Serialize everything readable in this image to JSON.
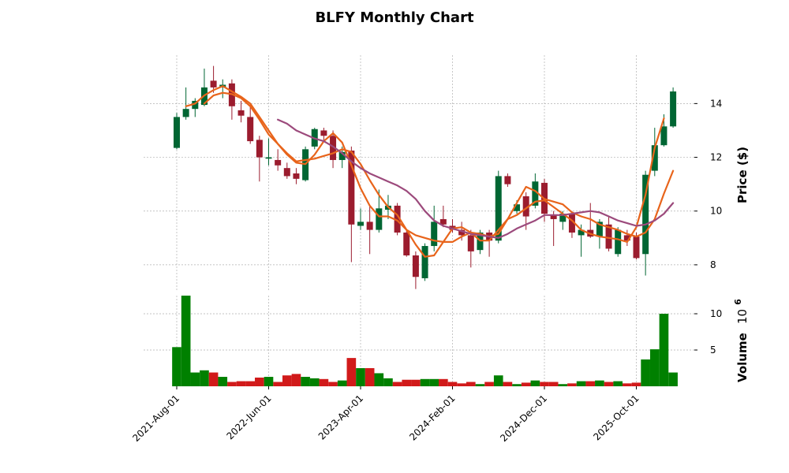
{
  "chart_data": {
    "type": "candlestick",
    "title": "BLFY Monthly Chart",
    "price_panel": {
      "ylabel": "Price ($)",
      "ylim": [
        7.0,
        15.8
      ],
      "yticks": [
        8,
        10,
        12,
        14
      ],
      "grid": true
    },
    "volume_panel": {
      "ylabel": "Volume",
      "ylabel_exponent": "10^6",
      "ylim": [
        0,
        12.5
      ],
      "yticks": [
        5,
        10
      ],
      "grid": true
    },
    "xtick_labels": [
      "2021-Aug-01",
      "2022-Jun-01",
      "2023-Apr-01",
      "2024-Feb-01",
      "2024-Dec-01",
      "2025-Oct-01"
    ],
    "xtick_indices": [
      0,
      10,
      20,
      30,
      40,
      50
    ],
    "colors": {
      "up": "#006633",
      "down": "#9b1c2e",
      "volume_up": "#008000",
      "volume_down": "#d11a1a",
      "ma_fast": "#e8641b",
      "ma_mid": "#e8641b",
      "ma_slow": "#9c4a7c",
      "grid": "#b0b0b0"
    },
    "candles": [
      {
        "date": "2021-Aug",
        "o": 12.35,
        "h": 13.65,
        "l": 12.3,
        "c": 13.5,
        "v": 5.4
      },
      {
        "date": "2021-Sep",
        "o": 13.5,
        "h": 14.6,
        "l": 13.4,
        "c": 13.8,
        "v": 12.5
      },
      {
        "date": "2021-Oct",
        "o": 13.8,
        "h": 14.2,
        "l": 13.5,
        "c": 14.1,
        "v": 1.9
      },
      {
        "date": "2021-Nov",
        "o": 13.95,
        "h": 15.3,
        "l": 13.9,
        "c": 14.6,
        "v": 2.2
      },
      {
        "date": "2021-Dec",
        "o": 14.85,
        "h": 15.4,
        "l": 14.4,
        "c": 14.6,
        "v": 1.9
      },
      {
        "date": "2022-Jan",
        "o": 14.6,
        "h": 14.9,
        "l": 14.2,
        "c": 14.7,
        "v": 1.3
      },
      {
        "date": "2022-Feb",
        "o": 14.75,
        "h": 14.9,
        "l": 13.4,
        "c": 13.9,
        "v": 0.6
      },
      {
        "date": "2022-Mar",
        "o": 13.75,
        "h": 14.1,
        "l": 13.3,
        "c": 13.55,
        "v": 0.7
      },
      {
        "date": "2022-Apr",
        "o": 13.5,
        "h": 14.0,
        "l": 12.5,
        "c": 12.6,
        "v": 0.7
      },
      {
        "date": "2022-May",
        "o": 12.65,
        "h": 12.8,
        "l": 11.1,
        "c": 12.0,
        "v": 1.2
      },
      {
        "date": "2022-Jun",
        "o": 11.95,
        "h": 12.7,
        "l": 11.7,
        "c": 12.0,
        "v": 1.3
      },
      {
        "date": "2022-Jul",
        "o": 11.9,
        "h": 12.3,
        "l": 11.5,
        "c": 11.7,
        "v": 0.6
      },
      {
        "date": "2022-Aug",
        "o": 11.6,
        "h": 11.8,
        "l": 11.2,
        "c": 11.3,
        "v": 1.5
      },
      {
        "date": "2022-Sep",
        "o": 11.4,
        "h": 11.6,
        "l": 11.0,
        "c": 11.2,
        "v": 1.7
      },
      {
        "date": "2022-Oct",
        "o": 11.15,
        "h": 12.4,
        "l": 11.1,
        "c": 12.3,
        "v": 1.3
      },
      {
        "date": "2022-Nov",
        "o": 12.4,
        "h": 13.1,
        "l": 12.3,
        "c": 13.05,
        "v": 1.1
      },
      {
        "date": "2022-Dec",
        "o": 13.0,
        "h": 13.1,
        "l": 12.6,
        "c": 12.8,
        "v": 1.0
      },
      {
        "date": "2023-Jan",
        "o": 12.8,
        "h": 13.0,
        "l": 11.6,
        "c": 11.9,
        "v": 0.6
      },
      {
        "date": "2023-Feb",
        "o": 11.9,
        "h": 12.4,
        "l": 11.6,
        "c": 12.2,
        "v": 0.8
      },
      {
        "date": "2023-Mar",
        "o": 12.25,
        "h": 12.4,
        "l": 8.1,
        "c": 9.5,
        "v": 3.9
      },
      {
        "date": "2023-Apr",
        "o": 9.45,
        "h": 10.1,
        "l": 9.3,
        "c": 9.6,
        "v": 2.5
      },
      {
        "date": "2023-May",
        "o": 9.6,
        "h": 10.2,
        "l": 8.4,
        "c": 9.3,
        "v": 2.5
      },
      {
        "date": "2023-Jun",
        "o": 9.3,
        "h": 10.8,
        "l": 9.2,
        "c": 10.1,
        "v": 1.8
      },
      {
        "date": "2023-Jul",
        "o": 10.05,
        "h": 10.6,
        "l": 9.7,
        "c": 10.2,
        "v": 1.1
      },
      {
        "date": "2023-Aug",
        "o": 10.2,
        "h": 10.3,
        "l": 9.1,
        "c": 9.2,
        "v": 0.6
      },
      {
        "date": "2023-Sep",
        "o": 9.2,
        "h": 9.3,
        "l": 8.3,
        "c": 8.35,
        "v": 0.9
      },
      {
        "date": "2023-Oct",
        "o": 8.35,
        "h": 8.5,
        "l": 7.1,
        "c": 7.55,
        "v": 0.9
      },
      {
        "date": "2023-Nov",
        "o": 7.5,
        "h": 8.8,
        "l": 7.4,
        "c": 8.7,
        "v": 1.0
      },
      {
        "date": "2023-Dec",
        "o": 8.7,
        "h": 10.2,
        "l": 8.5,
        "c": 9.6,
        "v": 1.0
      },
      {
        "date": "2024-Jan",
        "o": 9.7,
        "h": 10.2,
        "l": 9.4,
        "c": 9.5,
        "v": 1.0
      },
      {
        "date": "2024-Feb",
        "o": 9.45,
        "h": 9.7,
        "l": 9.2,
        "c": 9.3,
        "v": 0.6
      },
      {
        "date": "2024-Mar",
        "o": 9.3,
        "h": 9.6,
        "l": 8.9,
        "c": 9.1,
        "v": 0.4
      },
      {
        "date": "2024-Apr",
        "o": 9.1,
        "h": 9.3,
        "l": 7.9,
        "c": 8.5,
        "v": 0.6
      },
      {
        "date": "2024-May",
        "o": 8.55,
        "h": 9.3,
        "l": 8.4,
        "c": 9.2,
        "v": 0.3
      },
      {
        "date": "2024-Jun",
        "o": 9.2,
        "h": 9.3,
        "l": 8.3,
        "c": 8.9,
        "v": 0.6
      },
      {
        "date": "2024-Jul",
        "o": 8.9,
        "h": 11.5,
        "l": 8.8,
        "c": 11.3,
        "v": 1.5
      },
      {
        "date": "2024-Aug",
        "o": 11.3,
        "h": 11.4,
        "l": 10.9,
        "c": 11.0,
        "v": 0.6
      },
      {
        "date": "2024-Sep",
        "o": 10.0,
        "h": 10.4,
        "l": 9.9,
        "c": 10.25,
        "v": 0.3
      },
      {
        "date": "2024-Oct",
        "o": 10.55,
        "h": 10.7,
        "l": 9.3,
        "c": 9.8,
        "v": 0.5
      },
      {
        "date": "2024-Nov",
        "o": 10.2,
        "h": 11.4,
        "l": 10.1,
        "c": 11.1,
        "v": 0.8
      },
      {
        "date": "2024-Dec",
        "o": 11.05,
        "h": 11.2,
        "l": 9.6,
        "c": 9.9,
        "v": 0.6
      },
      {
        "date": "2025-Jan",
        "o": 9.85,
        "h": 10.0,
        "l": 8.7,
        "c": 9.7,
        "v": 0.6
      },
      {
        "date": "2025-Feb",
        "o": 9.6,
        "h": 10.0,
        "l": 9.3,
        "c": 9.9,
        "v": 0.3
      },
      {
        "date": "2025-Mar",
        "o": 9.9,
        "h": 10.0,
        "l": 9.0,
        "c": 9.2,
        "v": 0.4
      },
      {
        "date": "2025-Apr",
        "o": 9.1,
        "h": 9.5,
        "l": 8.3,
        "c": 9.3,
        "v": 0.7
      },
      {
        "date": "2025-May",
        "o": 9.3,
        "h": 10.3,
        "l": 9.0,
        "c": 9.05,
        "v": 0.7
      },
      {
        "date": "2025-Jun",
        "o": 9.05,
        "h": 9.7,
        "l": 8.6,
        "c": 9.6,
        "v": 0.8
      },
      {
        "date": "2025-Jul",
        "o": 9.5,
        "h": 9.8,
        "l": 8.5,
        "c": 8.6,
        "v": 0.6
      },
      {
        "date": "2025-Aug",
        "o": 8.4,
        "h": 9.4,
        "l": 8.3,
        "c": 9.3,
        "v": 0.7
      },
      {
        "date": "2025-Sep",
        "o": 9.1,
        "h": 9.3,
        "l": 8.7,
        "c": 8.9,
        "v": 0.4
      },
      {
        "date": "2025-Oct",
        "o": 9.05,
        "h": 9.2,
        "l": 8.2,
        "c": 8.25,
        "v": 0.5
      },
      {
        "date": "2025-Nov",
        "o": 8.4,
        "h": 11.5,
        "l": 7.6,
        "c": 11.35,
        "v": 3.7
      },
      {
        "date": "2025-Dec",
        "o": 11.5,
        "h": 13.1,
        "l": 11.3,
        "c": 12.45,
        "v": 5.1
      },
      {
        "date": "2026-Jan",
        "o": 12.45,
        "h": 13.6,
        "l": 12.4,
        "c": 13.15,
        "v": 10.0
      },
      {
        "date": "2026-Feb",
        "o": 13.15,
        "h": 14.6,
        "l": 13.1,
        "c": 14.45,
        "v": 1.9
      }
    ],
    "moving_averages": [
      {
        "role": "fast",
        "start": 1,
        "values": [
          13.9,
          14.0,
          14.3,
          14.5,
          14.65,
          14.45,
          14.25,
          14.0,
          13.5,
          13.0,
          12.5,
          12.1,
          11.8,
          11.75,
          12.1,
          12.6,
          12.9,
          12.55,
          11.7,
          10.85,
          10.2,
          9.8,
          9.8,
          9.65,
          9.3,
          8.75,
          8.3,
          8.35,
          8.85,
          9.35,
          9.4,
          9.2,
          8.9,
          8.9,
          9.3,
          9.7,
          9.85,
          10.1,
          10.35,
          10.4,
          10.15,
          9.9,
          9.65,
          9.3,
          9.15,
          9.05,
          9.0,
          8.95,
          8.85,
          9.4,
          10.6,
          12.35,
          13.45
        ]
      },
      {
        "role": "mid",
        "start": 3,
        "values": [
          14.0,
          14.3,
          14.4,
          14.35,
          14.2,
          13.9,
          13.4,
          12.85,
          12.5,
          12.15,
          11.85,
          11.9,
          11.95,
          12.05,
          12.15,
          12.3,
          12.2,
          11.75,
          11.15,
          10.6,
          10.15,
          9.85,
          9.3,
          9.1,
          9.0,
          8.9,
          8.85,
          8.85,
          9.05,
          9.2,
          9.15,
          9.05,
          9.15,
          9.7,
          10.3,
          10.9,
          10.75,
          10.45,
          10.35,
          10.25,
          9.95,
          9.8,
          9.7,
          9.5,
          9.4,
          9.3,
          9.15,
          9.05,
          9.2,
          9.7,
          10.65,
          11.5
        ]
      },
      {
        "role": "slow",
        "start": 11,
        "values": [
          13.4,
          13.25,
          13.0,
          12.85,
          12.7,
          12.6,
          12.4,
          12.15,
          11.85,
          11.6,
          11.4,
          11.25,
          11.1,
          10.95,
          10.75,
          10.45,
          10.0,
          9.65,
          9.45,
          9.35,
          9.25,
          9.15,
          9.1,
          9.05,
          9.0,
          9.15,
          9.35,
          9.5,
          9.65,
          9.85,
          9.85,
          9.85,
          9.9,
          9.95,
          10.0,
          9.95,
          9.8,
          9.65,
          9.55,
          9.45,
          9.5,
          9.65,
          9.9,
          10.3
        ]
      }
    ]
  }
}
